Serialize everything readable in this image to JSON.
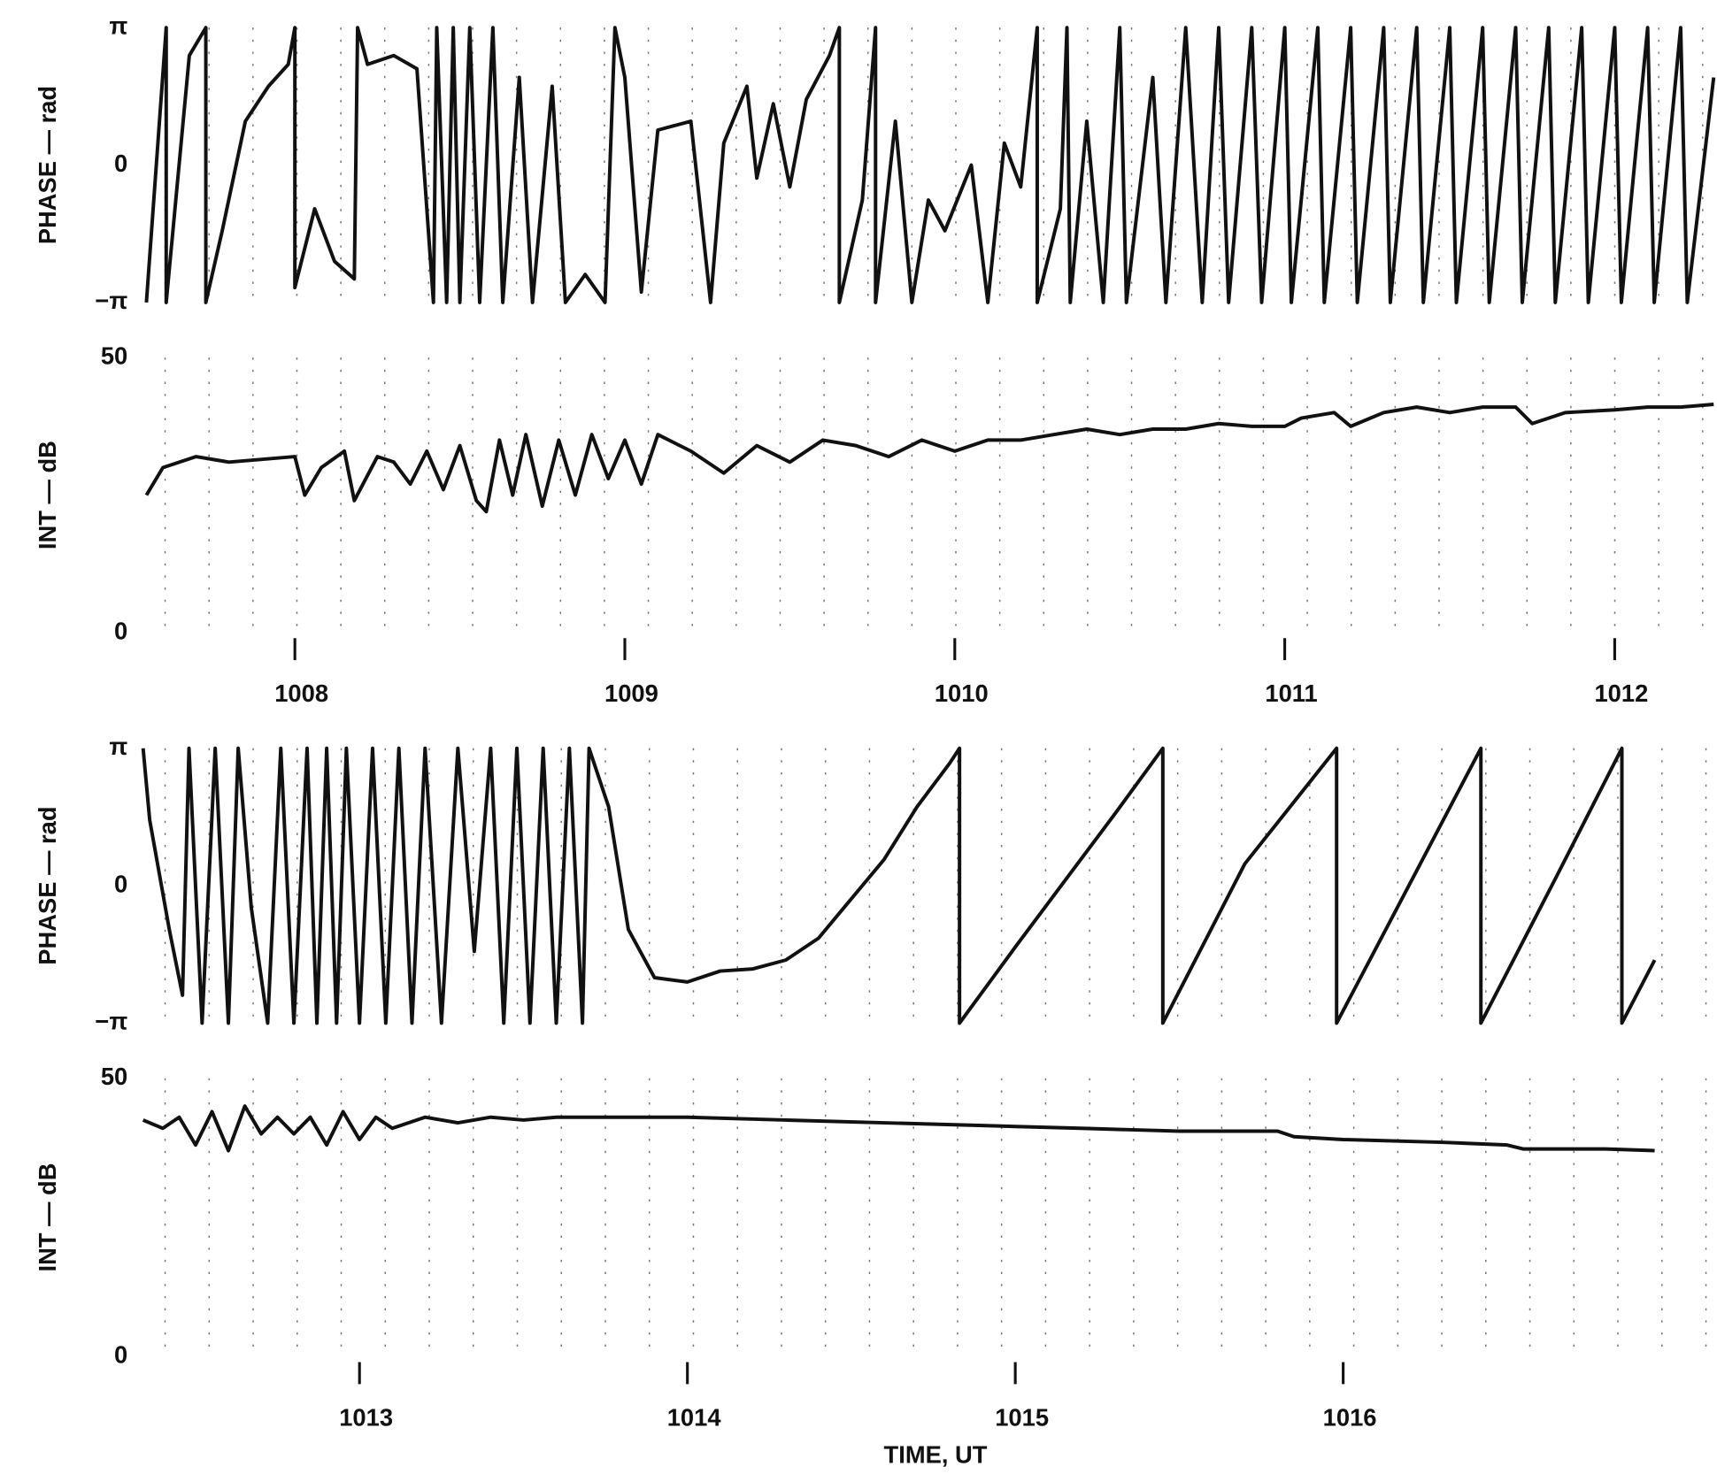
{
  "chart_data": [
    {
      "type": "line",
      "ylabel": "PHASE — rad",
      "color": "#111111",
      "xlim": [
        1007.54,
        1012.3
      ],
      "ylim": [
        -3.14159,
        3.14159
      ],
      "yticks": [
        {
          "value": -3.14159,
          "label": "−π"
        },
        0,
        {
          "value": 3.14159,
          "label": "π"
        }
      ],
      "x": [
        1007.55,
        1007.61,
        1007.61,
        1007.68,
        1007.73,
        1007.73,
        1007.78,
        1007.85,
        1007.92,
        1007.98,
        1008.0,
        1008.0,
        1008.06,
        1008.12,
        1008.18,
        1008.19,
        1008.22,
        1008.3,
        1008.37,
        1008.42,
        1008.43,
        1008.46,
        1008.48,
        1008.5,
        1008.53,
        1008.56,
        1008.6,
        1008.63,
        1008.68,
        1008.72,
        1008.78,
        1008.82,
        1008.88,
        1008.94,
        1008.97,
        1009.0,
        1009.05,
        1009.1,
        1009.2,
        1009.26,
        1009.3,
        1009.37,
        1009.4,
        1009.45,
        1009.5,
        1009.55,
        1009.62,
        1009.65,
        1009.65,
        1009.72,
        1009.76,
        1009.76,
        1009.82,
        1009.87,
        1009.92,
        1009.97,
        1010.05,
        1010.1,
        1010.15,
        1010.2,
        1010.25,
        1010.25,
        1010.32,
        1010.34,
        1010.35,
        1010.4,
        1010.45,
        1010.5,
        1010.52,
        1010.6,
        1010.64,
        1010.7,
        1010.75,
        1010.8,
        1010.83,
        1010.9,
        1010.93,
        1011.0,
        1011.02,
        1011.1,
        1011.12,
        1011.2,
        1011.22,
        1011.3,
        1011.32,
        1011.4,
        1011.42,
        1011.5,
        1011.52,
        1011.6,
        1011.62,
        1011.7,
        1011.72,
        1011.8,
        1011.82,
        1011.9,
        1011.92,
        1012.0,
        1012.02,
        1012.1,
        1012.12,
        1012.2,
        1012.22,
        1012.3
      ],
      "values": [
        -3.14,
        3.14,
        -3.14,
        2.5,
        3.14,
        -3.14,
        -1.5,
        1.0,
        1.8,
        2.3,
        3.14,
        -2.8,
        -1.0,
        -2.2,
        -2.6,
        3.14,
        2.3,
        2.5,
        2.2,
        -3.14,
        3.14,
        -3.14,
        3.14,
        -3.14,
        3.14,
        -3.14,
        3.14,
        -3.14,
        2.0,
        -3.14,
        1.8,
        -3.14,
        -2.5,
        -3.14,
        3.14,
        2.0,
        -2.9,
        0.8,
        1.0,
        -3.14,
        0.5,
        1.8,
        -0.3,
        1.4,
        -0.5,
        1.5,
        2.5,
        3.14,
        -3.14,
        -0.8,
        3.14,
        -3.14,
        1.0,
        -3.14,
        -0.8,
        -1.5,
        0.0,
        -3.14,
        0.5,
        -0.5,
        3.14,
        -3.14,
        -1.0,
        3.14,
        -3.14,
        1.0,
        -3.14,
        3.14,
        -3.14,
        2.0,
        -3.14,
        3.14,
        -3.14,
        3.14,
        -3.14,
        3.14,
        -3.14,
        3.14,
        -3.14,
        3.14,
        -3.14,
        3.14,
        -3.14,
        3.14,
        -3.14,
        3.14,
        -3.14,
        3.14,
        -3.14,
        3.14,
        -3.14,
        3.14,
        -3.14,
        3.14,
        -3.14,
        3.14,
        -3.14,
        3.14,
        -3.14,
        3.14,
        -3.14,
        3.14,
        -3.14,
        2.0
      ]
    },
    {
      "type": "line",
      "ylabel": "INT — dB",
      "color": "#111111",
      "xlim": [
        1007.54,
        1012.3
      ],
      "ylim": [
        0,
        50
      ],
      "yticks": [
        0,
        50
      ],
      "xticks": [
        1008,
        1009,
        1010,
        1011,
        1012
      ],
      "x": [
        1007.55,
        1007.6,
        1007.7,
        1007.8,
        1007.9,
        1008.0,
        1008.03,
        1008.08,
        1008.15,
        1008.18,
        1008.25,
        1008.3,
        1008.35,
        1008.4,
        1008.45,
        1008.5,
        1008.55,
        1008.58,
        1008.62,
        1008.66,
        1008.7,
        1008.75,
        1008.8,
        1008.85,
        1008.9,
        1008.95,
        1009.0,
        1009.05,
        1009.1,
        1009.2,
        1009.3,
        1009.4,
        1009.5,
        1009.6,
        1009.7,
        1009.8,
        1009.9,
        1010.0,
        1010.1,
        1010.2,
        1010.3,
        1010.4,
        1010.5,
        1010.6,
        1010.7,
        1010.8,
        1010.9,
        1011.0,
        1011.05,
        1011.15,
        1011.2,
        1011.3,
        1011.4,
        1011.5,
        1011.6,
        1011.7,
        1011.75,
        1011.85,
        1012.0,
        1012.1,
        1012.2,
        1012.3
      ],
      "values": [
        25,
        30,
        32,
        31,
        31.5,
        32,
        25,
        30,
        33,
        24,
        32,
        31,
        27,
        33,
        26,
        34,
        24,
        22,
        35,
        25,
        36,
        23,
        35,
        25,
        36,
        28,
        35,
        27,
        36,
        33,
        29,
        34,
        31,
        35,
        34,
        32,
        35,
        33,
        35,
        35,
        36,
        37,
        36,
        37,
        37,
        38,
        37.5,
        37.5,
        39,
        40,
        37.5,
        40,
        41,
        40,
        41,
        41,
        38,
        40,
        40.5,
        41,
        41,
        41.5
      ]
    },
    {
      "type": "line",
      "ylabel": "PHASE — rad",
      "color": "#111111",
      "xlim": [
        1012.34,
        1017.14
      ],
      "ylim": [
        -3.14159,
        3.14159
      ],
      "yticks": [
        {
          "value": -3.14159,
          "label": "−π"
        },
        0,
        {
          "value": 3.14159,
          "label": "π"
        }
      ],
      "x": [
        1012.34,
        1012.36,
        1012.42,
        1012.46,
        1012.48,
        1012.52,
        1012.56,
        1012.6,
        1012.63,
        1012.67,
        1012.72,
        1012.76,
        1012.8,
        1012.84,
        1012.87,
        1012.9,
        1012.93,
        1012.96,
        1013.0,
        1013.04,
        1013.08,
        1013.12,
        1013.16,
        1013.2,
        1013.25,
        1013.3,
        1013.35,
        1013.4,
        1013.44,
        1013.48,
        1013.52,
        1013.56,
        1013.6,
        1013.64,
        1013.68,
        1013.7,
        1013.76,
        1013.82,
        1013.9,
        1014.0,
        1014.1,
        1014.2,
        1014.3,
        1014.4,
        1014.5,
        1014.6,
        1014.7,
        1014.8,
        1014.83,
        1014.83,
        1015.0,
        1015.15,
        1015.3,
        1015.45,
        1015.45,
        1015.7,
        1015.98,
        1015.98,
        1016.2,
        1016.42,
        1016.42,
        1016.65,
        1016.85,
        1016.85,
        1016.95
      ],
      "values": [
        3.14,
        1.5,
        -1.0,
        -2.5,
        3.14,
        -3.14,
        3.14,
        -3.14,
        3.14,
        -0.5,
        -3.14,
        3.14,
        -3.14,
        3.14,
        -3.14,
        3.14,
        -3.14,
        3.14,
        -3.14,
        3.14,
        -3.14,
        3.14,
        -3.14,
        3.14,
        -3.14,
        3.14,
        -1.5,
        3.14,
        -3.14,
        3.14,
        -3.14,
        3.14,
        -3.14,
        3.14,
        -3.14,
        3.14,
        1.8,
        -1.0,
        -2.1,
        -2.2,
        -1.95,
        -1.9,
        -1.7,
        -1.2,
        -0.3,
        0.6,
        1.8,
        2.8,
        3.14,
        -3.14,
        -1.4,
        0.1,
        1.6,
        3.14,
        -3.14,
        0.5,
        3.14,
        -3.14,
        0.0,
        3.14,
        -3.14,
        0.2,
        3.14,
        -3.14,
        -1.7
      ]
    },
    {
      "type": "line",
      "ylabel": "INT — dB",
      "xlabel": "TIME, UT",
      "color": "#111111",
      "xlim": [
        1012.34,
        1017.14
      ],
      "ylim": [
        0,
        50
      ],
      "yticks": [
        0,
        50
      ],
      "xticks": [
        1013,
        1014,
        1015,
        1016
      ],
      "x": [
        1012.34,
        1012.4,
        1012.45,
        1012.5,
        1012.55,
        1012.6,
        1012.65,
        1012.7,
        1012.75,
        1012.8,
        1012.85,
        1012.9,
        1012.95,
        1013.0,
        1013.05,
        1013.1,
        1013.2,
        1013.3,
        1013.4,
        1013.5,
        1013.6,
        1013.7,
        1014.0,
        1014.3,
        1014.6,
        1014.9,
        1015.2,
        1015.5,
        1015.8,
        1015.85,
        1016.0,
        1016.3,
        1016.5,
        1016.55,
        1016.8,
        1016.95
      ],
      "values": [
        42.5,
        41,
        43,
        38,
        44,
        37,
        45,
        40,
        43,
        40,
        43,
        38,
        44,
        39,
        43,
        41,
        43,
        42,
        43,
        42.5,
        43,
        43,
        43,
        42.5,
        42,
        41.5,
        41,
        40.5,
        40.5,
        39.5,
        39,
        38.5,
        38,
        37.3,
        37.3,
        37
      ]
    }
  ]
}
